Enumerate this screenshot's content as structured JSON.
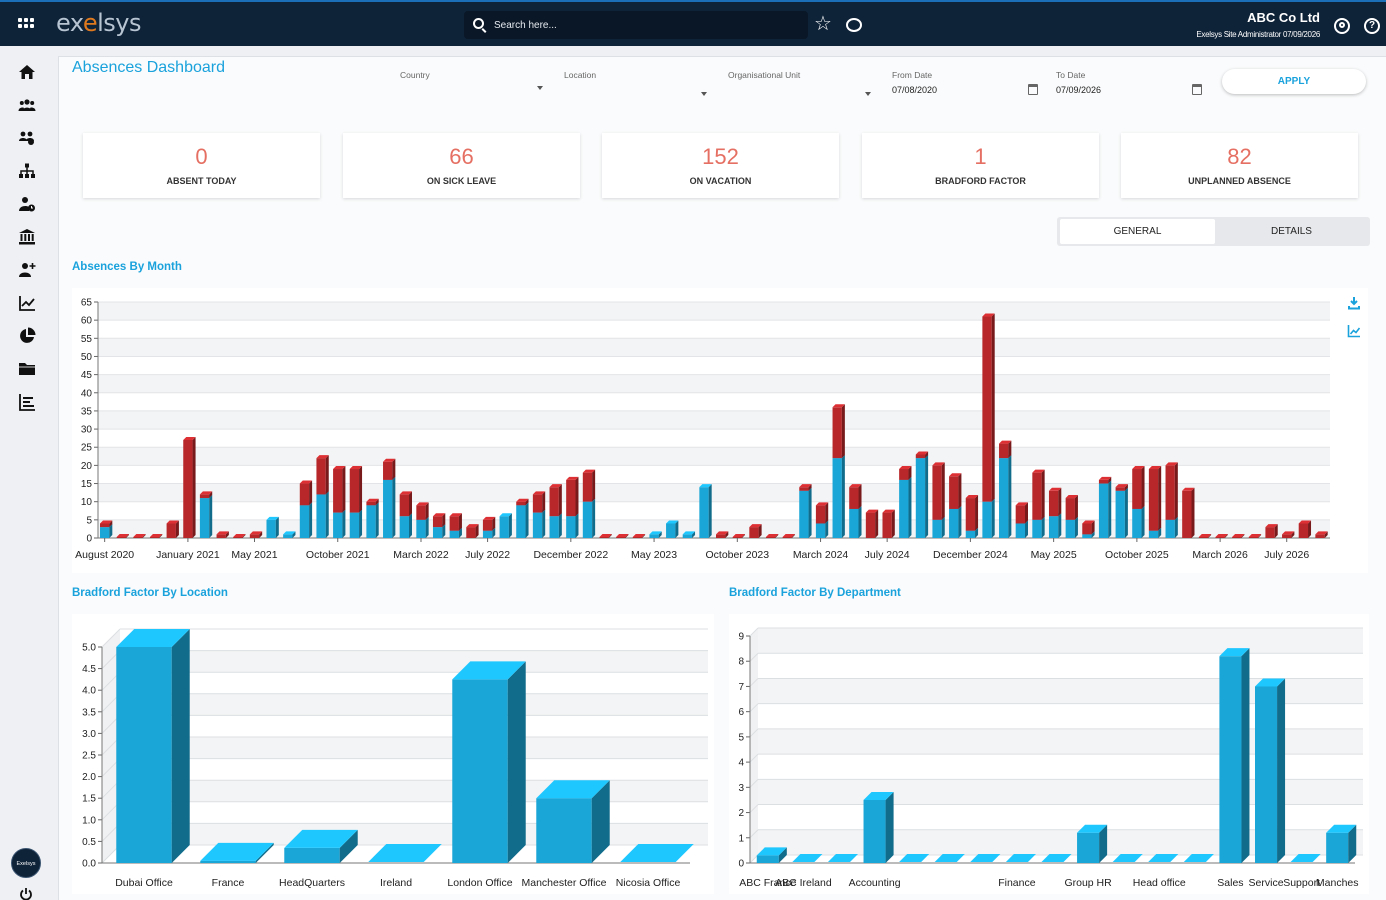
{
  "header": {
    "logo_pre": "ex",
    "logo_accent": "e",
    "logo_post": "lsys",
    "search_placeholder": "Search here...",
    "company": "ABC Co Ltd",
    "role_date": "Exelsys Site Administrator 07/09/2026"
  },
  "sidebar": {
    "icons": [
      "home-icon",
      "team-icon",
      "groups-icon",
      "org-chart-icon",
      "person-clock-icon",
      "bank-icon",
      "add-person-icon",
      "line-chart-icon",
      "pie-chart-icon",
      "folder-icon",
      "list-chart-icon"
    ],
    "avatar_text": "Exelsys"
  },
  "page": {
    "title": "Absences Dashboard"
  },
  "filters": {
    "country": {
      "label": "Country",
      "value": ""
    },
    "location": {
      "label": "Location",
      "value": ""
    },
    "org_unit": {
      "label": "Organisational Unit",
      "value": ""
    },
    "from_date": {
      "label": "From Date",
      "value": "07/08/2020"
    },
    "to_date": {
      "label": "To Date",
      "value": "07/09/2026"
    },
    "apply_label": "APPLY"
  },
  "kpis": [
    {
      "value": "0",
      "label": "ABSENT TODAY"
    },
    {
      "value": "66",
      "label": "ON SICK LEAVE"
    },
    {
      "value": "152",
      "label": "ON VACATION"
    },
    {
      "value": "1",
      "label": "BRADFORD FACTOR"
    },
    {
      "value": "82",
      "label": "UNPLANNED ABSENCE"
    }
  ],
  "tabs": [
    {
      "label": "GENERAL",
      "active": true
    },
    {
      "label": "DETAILS",
      "active": false
    }
  ],
  "sections": {
    "by_month": "Absences By Month",
    "by_location": "Bradford Factor By Location",
    "by_department": "Bradford Factor By Department"
  },
  "chart_data": [
    {
      "type": "bar",
      "stacked": true,
      "title": "Absences By Month",
      "ylim": [
        0,
        65
      ],
      "yticks": [
        0,
        5,
        10,
        15,
        20,
        25,
        30,
        35,
        40,
        45,
        50,
        55,
        60,
        65
      ],
      "grid": true,
      "x_tick_labels": [
        "August 2020",
        "January 2021",
        "May 2021",
        "October 2021",
        "March 2022",
        "July 2022",
        "December 2022",
        "May 2023",
        "October 2023",
        "March 2024",
        "July 2024",
        "December 2024",
        "May 2025",
        "October 2025",
        "March 2026",
        "July 2026"
      ],
      "x_tick_index": [
        0,
        5,
        9,
        14,
        19,
        23,
        28,
        33,
        38,
        43,
        47,
        52,
        57,
        62,
        67,
        71
      ],
      "colors": {
        "lower": "#1aa6d6",
        "upper": "#b8282b"
      },
      "series": [
        {
          "values": [
            3,
            0,
            0,
            0,
            0,
            0,
            11,
            0,
            0,
            0,
            5,
            1,
            9,
            12,
            7,
            7,
            9,
            16,
            6,
            5,
            3,
            2,
            0,
            2,
            6,
            9,
            7,
            6,
            6,
            10,
            0,
            0,
            0,
            1,
            4,
            1,
            14,
            0,
            0,
            0,
            0,
            0,
            13,
            4,
            22,
            8,
            0,
            0,
            16,
            22,
            5,
            8,
            2,
            10,
            22,
            4,
            5,
            6,
            5,
            1,
            15,
            13,
            8,
            2,
            5,
            0,
            0,
            0,
            0,
            0,
            0,
            0,
            0,
            0
          ]
        },
        {
          "values": [
            1,
            0,
            0,
            0,
            4,
            27,
            1,
            1,
            0,
            1,
            0,
            0,
            6,
            10,
            12,
            12,
            1,
            5,
            6,
            4,
            3,
            4,
            3,
            3,
            0,
            1,
            5,
            8,
            10,
            8,
            0,
            0,
            0,
            0,
            0,
            0,
            0,
            1,
            0,
            3,
            0,
            0,
            1,
            5,
            14,
            6,
            7,
            7,
            3,
            1,
            15,
            9,
            9,
            51,
            4,
            5,
            13,
            7,
            6,
            3,
            1,
            1,
            11,
            17,
            15,
            13,
            0,
            0,
            0,
            0,
            3,
            1,
            4,
            1
          ]
        }
      ]
    },
    {
      "type": "bar",
      "title": "Bradford Factor By Location",
      "categories": [
        "Dubai Office",
        "France",
        "HeadQuarters",
        "Ireland",
        "London Office",
        "Manchester Office",
        "Nicosia Office"
      ],
      "values": [
        5.0,
        0.05,
        0.35,
        0.0,
        4.25,
        1.5,
        0.0
      ],
      "ylim": [
        0,
        5.0
      ],
      "yticks": [
        "0.0",
        "0.5",
        "1.0",
        "1.5",
        "2.0",
        "2.5",
        "3.0",
        "3.5",
        "4.0",
        "4.5",
        "5.0"
      ],
      "color": "#1aa6d6"
    },
    {
      "type": "bar",
      "title": "Bradford Factor By Department",
      "categories": [
        "ABC France",
        "ABC Ireland",
        "",
        "Accounting",
        "",
        "",
        "",
        "Finance",
        "",
        "Group HR",
        "",
        "Head office",
        "",
        "Sales",
        "Service",
        "Support",
        "Manches"
      ],
      "values": [
        0.3,
        0,
        0,
        2.5,
        0,
        0,
        0,
        0,
        0,
        1.2,
        0,
        0,
        0,
        8.2,
        7.0,
        0,
        1.2
      ],
      "ylim": [
        0,
        9
      ],
      "yticks": [
        "0",
        "1",
        "2",
        "3",
        "4",
        "5",
        "6",
        "7",
        "8",
        "9"
      ],
      "color": "#1aa6d6"
    }
  ]
}
